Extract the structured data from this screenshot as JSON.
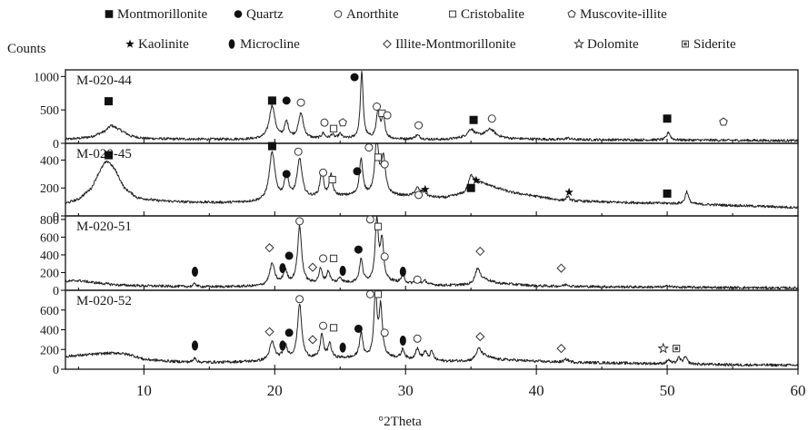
{
  "chart_data": {
    "type": "line",
    "title": "",
    "xlabel": "°2Theta",
    "ylabel": "Counts",
    "xlim": [
      4,
      60
    ],
    "x_ticks": [
      "10",
      "20",
      "30",
      "40",
      "50",
      "60"
    ],
    "legend": [
      {
        "symbol": "filled-square",
        "label": "Montmorillonite"
      },
      {
        "symbol": "filled-circle",
        "label": "Quartz"
      },
      {
        "symbol": "open-circle",
        "label": "Anorthite"
      },
      {
        "symbol": "open-square",
        "label": "Cristobalite"
      },
      {
        "symbol": "open-pentagon",
        "label": "Muscovite-illite"
      },
      {
        "symbol": "small-star",
        "label": "Kaolinite"
      },
      {
        "symbol": "filled-ellipse",
        "label": "Microcline"
      },
      {
        "symbol": "open-diamond",
        "label": "Illite-Montmorillonite"
      },
      {
        "symbol": "open-star",
        "label": "Dolomite"
      },
      {
        "symbol": "square-dot",
        "label": "Siderite"
      }
    ],
    "panels": [
      {
        "name": "M-020-44",
        "ylim": [
          0,
          1100
        ],
        "y_ticks": [
          "0",
          "500",
          "1000"
        ],
        "baseline": 40,
        "background": [
          [
            4,
            60
          ],
          [
            5,
            75
          ],
          [
            6,
            100
          ],
          [
            7,
            180
          ],
          [
            7.5,
            270
          ],
          [
            8,
            220
          ],
          [
            9,
            110
          ],
          [
            10,
            75
          ],
          [
            12,
            65
          ],
          [
            15,
            60
          ],
          [
            18,
            60
          ],
          [
            20,
            60
          ],
          [
            25,
            65
          ],
          [
            30,
            60
          ],
          [
            33,
            55
          ],
          [
            35,
            90
          ],
          [
            36,
            110
          ],
          [
            38,
            70
          ],
          [
            42,
            55
          ],
          [
            50,
            50
          ],
          [
            55,
            45
          ],
          [
            60,
            40
          ]
        ],
        "peaks": [
          [
            19.8,
            500,
            0.35
          ],
          [
            20.9,
            240,
            0.25
          ],
          [
            22.0,
            380,
            0.3
          ],
          [
            23.7,
            80,
            0.2
          ],
          [
            24.4,
            60,
            0.2
          ],
          [
            25.0,
            70,
            0.2
          ],
          [
            26.65,
            1000,
            0.17
          ],
          [
            27.9,
            430,
            0.2
          ],
          [
            28.3,
            300,
            0.2
          ],
          [
            30.9,
            60,
            0.3
          ],
          [
            35.0,
            120,
            0.4
          ],
          [
            36.5,
            110,
            0.5
          ],
          [
            42.4,
            25,
            0.3
          ],
          [
            50.1,
            120,
            0.2
          ]
        ],
        "markers": [
          {
            "x": 7.3,
            "y": 630,
            "symbol": "filled-square"
          },
          {
            "x": 19.8,
            "y": 640,
            "symbol": "filled-square"
          },
          {
            "x": 20.9,
            "y": 640,
            "symbol": "filled-circle"
          },
          {
            "x": 22.0,
            "y": 610,
            "symbol": "open-circle"
          },
          {
            "x": 23.8,
            "y": 310,
            "symbol": "open-circle"
          },
          {
            "x": 24.5,
            "y": 220,
            "symbol": "open-square"
          },
          {
            "x": 25.2,
            "y": 310,
            "symbol": "open-pentagon"
          },
          {
            "x": 26.1,
            "y": 990,
            "symbol": "filled-circle"
          },
          {
            "x": 27.8,
            "y": 550,
            "symbol": "open-circle"
          },
          {
            "x": 28.2,
            "y": 450,
            "symbol": "open-square"
          },
          {
            "x": 28.6,
            "y": 420,
            "symbol": "open-circle"
          },
          {
            "x": 31.0,
            "y": 270,
            "symbol": "open-circle"
          },
          {
            "x": 35.2,
            "y": 350,
            "symbol": "filled-square"
          },
          {
            "x": 36.6,
            "y": 370,
            "symbol": "open-circle"
          },
          {
            "x": 50.0,
            "y": 370,
            "symbol": "filled-square"
          },
          {
            "x": 54.3,
            "y": 320,
            "symbol": "open-pentagon"
          }
        ]
      },
      {
        "name": "M-020-45",
        "ylim": [
          0,
          520
        ],
        "y_ticks": [
          "0",
          "200",
          "400"
        ],
        "baseline": 30,
        "background": [
          [
            4,
            90
          ],
          [
            5,
            120
          ],
          [
            6,
            200
          ],
          [
            6.5,
            300
          ],
          [
            7,
            380
          ],
          [
            7.3,
            390
          ],
          [
            7.8,
            330
          ],
          [
            8.5,
            200
          ],
          [
            9.5,
            130
          ],
          [
            11,
            110
          ],
          [
            13,
            100
          ],
          [
            16,
            95
          ],
          [
            19,
            100
          ],
          [
            20,
            110
          ],
          [
            25,
            140
          ],
          [
            28,
            150
          ],
          [
            30,
            140
          ],
          [
            33,
            130
          ],
          [
            34.5,
            160
          ],
          [
            35.3,
            240
          ],
          [
            36,
            230
          ],
          [
            38,
            170
          ],
          [
            40,
            140
          ],
          [
            42,
            110
          ],
          [
            45,
            100
          ],
          [
            50,
            90
          ],
          [
            55,
            75
          ],
          [
            60,
            60
          ]
        ],
        "peaks": [
          [
            19.8,
            340,
            0.35
          ],
          [
            20.9,
            170,
            0.25
          ],
          [
            21.9,
            280,
            0.3
          ],
          [
            23.6,
            190,
            0.2
          ],
          [
            24.3,
            150,
            0.2
          ],
          [
            26.6,
            260,
            0.2
          ],
          [
            27.8,
            400,
            0.22
          ],
          [
            28.3,
            260,
            0.25
          ],
          [
            30.9,
            60,
            0.3
          ],
          [
            31.4,
            45,
            0.2
          ],
          [
            35.0,
            80,
            0.3
          ],
          [
            42.4,
            30,
            0.2
          ],
          [
            51.5,
            90,
            0.2
          ]
        ],
        "markers": [
          {
            "x": 7.3,
            "y": 435,
            "symbol": "filled-square"
          },
          {
            "x": 19.8,
            "y": 500,
            "symbol": "filled-square"
          },
          {
            "x": 20.9,
            "y": 300,
            "symbol": "filled-circle"
          },
          {
            "x": 21.8,
            "y": 460,
            "symbol": "open-circle"
          },
          {
            "x": 23.7,
            "y": 310,
            "symbol": "open-circle"
          },
          {
            "x": 24.4,
            "y": 260,
            "symbol": "open-square"
          },
          {
            "x": 26.3,
            "y": 320,
            "symbol": "filled-circle"
          },
          {
            "x": 27.2,
            "y": 490,
            "symbol": "open-circle"
          },
          {
            "x": 27.9,
            "y": 420,
            "symbol": "open-square"
          },
          {
            "x": 28.4,
            "y": 370,
            "symbol": "open-circle"
          },
          {
            "x": 31.0,
            "y": 150,
            "symbol": "open-circle"
          },
          {
            "x": 31.5,
            "y": 190,
            "symbol": "small-star"
          },
          {
            "x": 35.0,
            "y": 200,
            "symbol": "filled-square"
          },
          {
            "x": 35.4,
            "y": 255,
            "symbol": "small-star"
          },
          {
            "x": 42.5,
            "y": 170,
            "symbol": "small-star"
          },
          {
            "x": 50.0,
            "y": 160,
            "symbol": "filled-square"
          }
        ]
      },
      {
        "name": "M-020-51",
        "ylim": [
          0,
          840
        ],
        "y_ticks": [
          "0",
          "200",
          "400",
          "600",
          "800"
        ],
        "baseline": 15,
        "background": [
          [
            4,
            100
          ],
          [
            5,
            110
          ],
          [
            6,
            90
          ],
          [
            8,
            60
          ],
          [
            10,
            50
          ],
          [
            12,
            45
          ],
          [
            14,
            40
          ],
          [
            16,
            40
          ],
          [
            19,
            45
          ],
          [
            20,
            60
          ],
          [
            25,
            80
          ],
          [
            29,
            90
          ],
          [
            30,
            70
          ],
          [
            33,
            55
          ],
          [
            35,
            60
          ],
          [
            36,
            120
          ],
          [
            37,
            80
          ],
          [
            40,
            50
          ],
          [
            42,
            45
          ],
          [
            45,
            40
          ],
          [
            50,
            35
          ],
          [
            55,
            30
          ],
          [
            60,
            25
          ]
        ],
        "peaks": [
          [
            13.9,
            40,
            0.15
          ],
          [
            19.8,
            240,
            0.3
          ],
          [
            20.8,
            150,
            0.25
          ],
          [
            21.9,
            650,
            0.25
          ],
          [
            23.5,
            160,
            0.2
          ],
          [
            24.1,
            130,
            0.2
          ],
          [
            25.0,
            60,
            0.2
          ],
          [
            26.6,
            260,
            0.2
          ],
          [
            27.8,
            700,
            0.2
          ],
          [
            28.2,
            450,
            0.2
          ],
          [
            29.8,
            100,
            0.2
          ],
          [
            30.9,
            55,
            0.25
          ],
          [
            31.5,
            40,
            0.2
          ],
          [
            35.5,
            160,
            0.3
          ],
          [
            42.3,
            20,
            0.3
          ],
          [
            50.1,
            20,
            0.2
          ]
        ],
        "markers": [
          {
            "x": 13.9,
            "y": 210,
            "symbol": "filled-ellipse"
          },
          {
            "x": 19.6,
            "y": 480,
            "symbol": "open-diamond"
          },
          {
            "x": 20.6,
            "y": 250,
            "symbol": "filled-ellipse"
          },
          {
            "x": 21.1,
            "y": 390,
            "symbol": "filled-circle"
          },
          {
            "x": 21.9,
            "y": 780,
            "symbol": "open-circle"
          },
          {
            "x": 22.9,
            "y": 260,
            "symbol": "open-diamond"
          },
          {
            "x": 23.7,
            "y": 360,
            "symbol": "open-circle"
          },
          {
            "x": 24.5,
            "y": 360,
            "symbol": "open-square"
          },
          {
            "x": 25.2,
            "y": 220,
            "symbol": "filled-ellipse"
          },
          {
            "x": 26.4,
            "y": 460,
            "symbol": "filled-circle"
          },
          {
            "x": 27.3,
            "y": 800,
            "symbol": "open-circle"
          },
          {
            "x": 27.9,
            "y": 720,
            "symbol": "open-square"
          },
          {
            "x": 28.4,
            "y": 380,
            "symbol": "open-circle"
          },
          {
            "x": 29.8,
            "y": 210,
            "symbol": "filled-ellipse"
          },
          {
            "x": 30.9,
            "y": 120,
            "symbol": "open-circle"
          },
          {
            "x": 35.7,
            "y": 440,
            "symbol": "open-diamond"
          },
          {
            "x": 41.9,
            "y": 250,
            "symbol": "open-diamond"
          }
        ]
      },
      {
        "name": "M-020-52",
        "ylim": [
          0,
          800
        ],
        "y_ticks": [
          "0",
          "200",
          "400",
          "600"
        ],
        "baseline": 30,
        "background": [
          [
            4,
            130
          ],
          [
            5,
            140
          ],
          [
            6,
            150
          ],
          [
            7,
            160
          ],
          [
            8,
            165
          ],
          [
            9,
            145
          ],
          [
            10,
            100
          ],
          [
            12,
            80
          ],
          [
            14,
            70
          ],
          [
            16,
            70
          ],
          [
            19,
            80
          ],
          [
            20,
            95
          ],
          [
            25,
            110
          ],
          [
            29,
            115
          ],
          [
            30,
            95
          ],
          [
            33,
            80
          ],
          [
            35,
            85
          ],
          [
            36,
            130
          ],
          [
            37,
            100
          ],
          [
            40,
            80
          ],
          [
            42,
            70
          ],
          [
            45,
            65
          ],
          [
            50,
            55
          ],
          [
            55,
            45
          ],
          [
            60,
            40
          ]
        ],
        "peaks": [
          [
            13.9,
            50,
            0.15
          ],
          [
            19.8,
            180,
            0.3
          ],
          [
            20.8,
            140,
            0.25
          ],
          [
            21.9,
            560,
            0.25
          ],
          [
            23.6,
            240,
            0.2
          ],
          [
            24.2,
            150,
            0.2
          ],
          [
            26.6,
            250,
            0.2
          ],
          [
            27.7,
            670,
            0.18
          ],
          [
            28.1,
            500,
            0.2
          ],
          [
            29.8,
            100,
            0.2
          ],
          [
            30.9,
            110,
            0.25
          ],
          [
            31.5,
            80,
            0.2
          ],
          [
            32.0,
            90,
            0.2
          ],
          [
            35.6,
            100,
            0.3
          ],
          [
            42.3,
            30,
            0.3
          ],
          [
            50.1,
            40,
            0.2
          ],
          [
            50.9,
            60,
            0.2
          ],
          [
            51.4,
            70,
            0.2
          ]
        ],
        "markers": [
          {
            "x": 13.9,
            "y": 240,
            "symbol": "filled-ellipse"
          },
          {
            "x": 19.6,
            "y": 380,
            "symbol": "open-diamond"
          },
          {
            "x": 20.6,
            "y": 240,
            "symbol": "filled-ellipse"
          },
          {
            "x": 21.1,
            "y": 370,
            "symbol": "filled-circle"
          },
          {
            "x": 21.9,
            "y": 710,
            "symbol": "open-circle"
          },
          {
            "x": 22.9,
            "y": 300,
            "symbol": "open-diamond"
          },
          {
            "x": 23.7,
            "y": 440,
            "symbol": "open-circle"
          },
          {
            "x": 24.5,
            "y": 420,
            "symbol": "open-square"
          },
          {
            "x": 25.2,
            "y": 220,
            "symbol": "filled-ellipse"
          },
          {
            "x": 26.4,
            "y": 410,
            "symbol": "filled-circle"
          },
          {
            "x": 27.3,
            "y": 760,
            "symbol": "open-circle"
          },
          {
            "x": 27.9,
            "y": 760,
            "symbol": "open-square"
          },
          {
            "x": 28.4,
            "y": 370,
            "symbol": "open-circle"
          },
          {
            "x": 29.8,
            "y": 290,
            "symbol": "filled-ellipse"
          },
          {
            "x": 30.9,
            "y": 310,
            "symbol": "open-circle"
          },
          {
            "x": 35.7,
            "y": 330,
            "symbol": "open-diamond"
          },
          {
            "x": 41.9,
            "y": 210,
            "symbol": "open-diamond"
          },
          {
            "x": 49.7,
            "y": 210,
            "symbol": "open-star"
          },
          {
            "x": 50.7,
            "y": 210,
            "symbol": "square-dot"
          }
        ]
      }
    ]
  }
}
